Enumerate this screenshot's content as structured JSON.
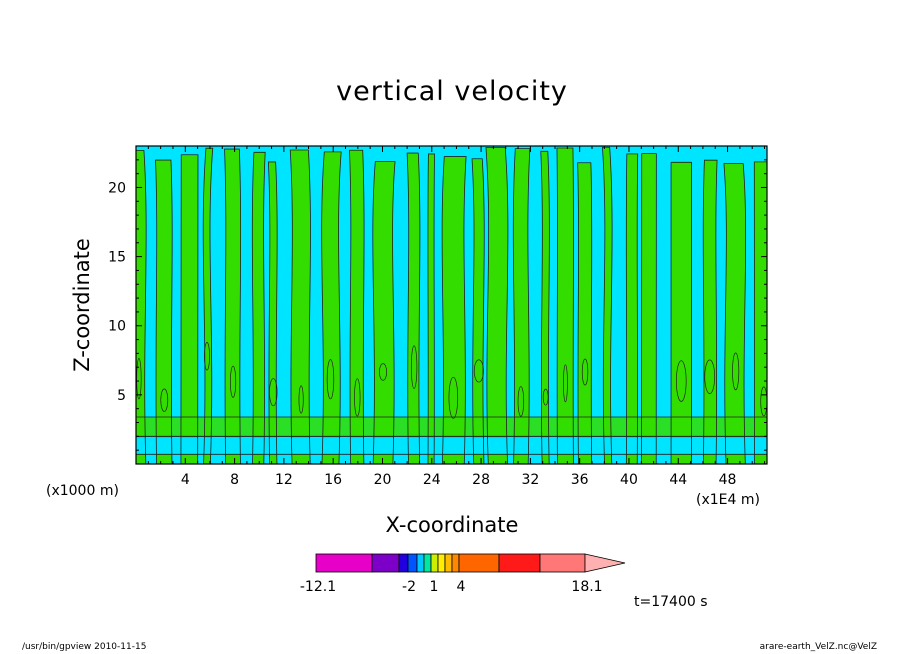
{
  "chart_data": {
    "type": "heatmap",
    "title": "vertical velocity",
    "xlabel": "X-coordinate",
    "ylabel": "Z-coordinate",
    "x_unit": "(x1E4 m)",
    "y_unit": "(x1000 m)",
    "xlim": [
      0,
      51.2
    ],
    "ylim": [
      0,
      23
    ],
    "x_ticks": [
      4,
      8,
      12,
      16,
      20,
      24,
      28,
      32,
      36,
      40,
      44,
      48
    ],
    "y_ticks": [
      5,
      10,
      15,
      20
    ],
    "palette": {
      "negative": "#00e5ff",
      "positive": "#33dd00",
      "contour": "#222222"
    },
    "colorbar": {
      "min": -12.1,
      "max": 18.1,
      "labels": [
        "-12.1",
        "-2",
        "1",
        "4",
        "18.1"
      ],
      "colors": [
        "#e600c8",
        "#7d00c8",
        "#2200dd",
        "#0055ff",
        "#00c8ff",
        "#00e8a0",
        "#ccee00",
        "#ffee00",
        "#ffbb00",
        "#ff8800",
        "#ff6600",
        "#ff1a1a",
        "#ff7777",
        "#ffb0b0"
      ]
    },
    "time_label": "t=17400 s"
  },
  "footer": {
    "left": "/usr/bin/gpview   2010-11-15",
    "right": "arare-earth_VelZ.nc@VelZ"
  }
}
